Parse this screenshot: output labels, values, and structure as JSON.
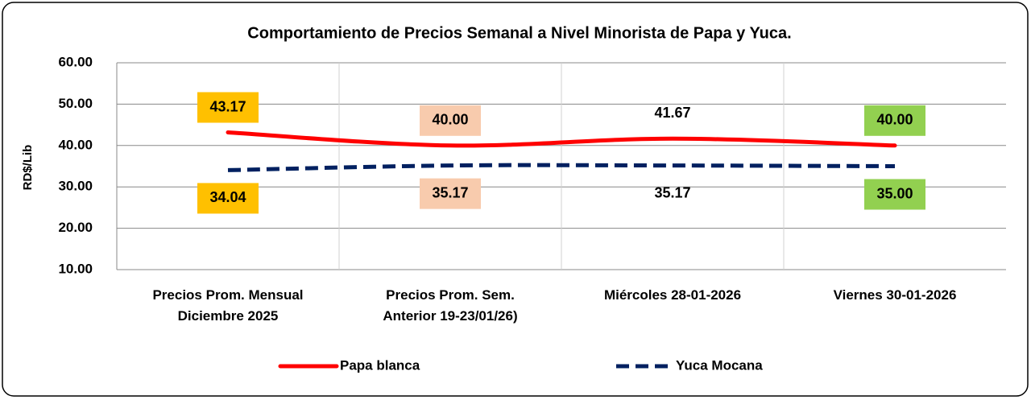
{
  "chart_data": {
    "type": "line",
    "title": "Comportamiento de Precios Semanal a Nivel Minorista de Papa y Yuca.",
    "y_label": "RD$/Lib",
    "categories": [
      "Precios Prom. Mensual\nDiciembre 2025",
      "Precios Prom. Sem.\nAnterior  19-23/01/26)",
      "Miércoles 28-01-2026",
      "Viernes 30-01-2026"
    ],
    "series": [
      {
        "name": "Papa blanca",
        "color": "#ff0000",
        "dashed": false,
        "label_side": "above",
        "values": [
          43.17,
          40.0,
          41.67,
          40.0
        ],
        "value_labels": [
          "43.17",
          "40.00",
          "41.67",
          "40.00"
        ],
        "value_label_colors": [
          "#ffc000",
          "#f8cbad",
          null,
          "#92d050"
        ]
      },
      {
        "name": "Yuca Mocana",
        "color": "#002060",
        "dashed": true,
        "label_side": "below",
        "values": [
          34.04,
          35.17,
          35.17,
          35.0
        ],
        "value_labels": [
          "34.04",
          "35.17",
          "35.17",
          "35.00"
        ],
        "value_label_colors": [
          "#ffc000",
          "#f8cbad",
          null,
          "#92d050"
        ]
      }
    ],
    "ylim": [
      10,
      60
    ],
    "yticks": [
      {
        "value": 10,
        "label": "10.00"
      },
      {
        "value": 20,
        "label": "20.00"
      },
      {
        "value": 30,
        "label": "30.00"
      },
      {
        "value": 40,
        "label": "40.00"
      },
      {
        "value": 50,
        "label": "50.00"
      },
      {
        "value": 60,
        "label": "60.00"
      }
    ],
    "grid": true,
    "legend": "bottom"
  }
}
